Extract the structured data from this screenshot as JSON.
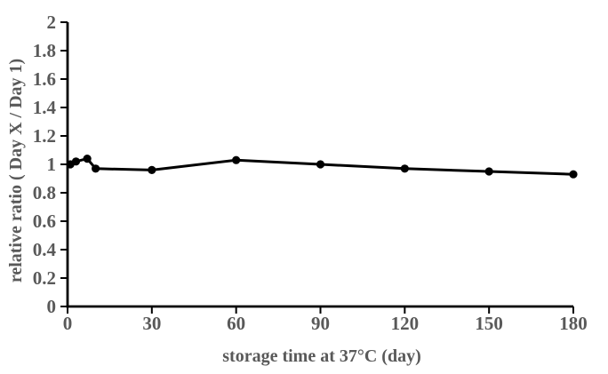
{
  "chart_data": {
    "type": "line",
    "title": "",
    "xlabel": "storage time at 37°C (day)",
    "ylabel": "relative ratio ( Day X / Day 1)",
    "series": [
      {
        "name": "relative ratio",
        "x": [
          1,
          3,
          7,
          10,
          30,
          60,
          90,
          120,
          150,
          180
        ],
        "y": [
          1.0,
          1.02,
          1.04,
          0.97,
          0.96,
          1.03,
          1.0,
          0.97,
          0.95,
          0.93
        ]
      }
    ],
    "xlim": [
      0,
      180
    ],
    "ylim": [
      0,
      2
    ],
    "x_ticks": [
      0,
      30,
      60,
      90,
      120,
      150,
      180
    ],
    "y_ticks": [
      0,
      0.2,
      0.4,
      0.6,
      0.8,
      1,
      1.2,
      1.4,
      1.6,
      1.8,
      2
    ],
    "grid": false,
    "legend": false,
    "marker": "circle",
    "line_color": "#000000",
    "axis_color": "#000000",
    "label_color": "#595959",
    "background_color": "#ffffff"
  }
}
